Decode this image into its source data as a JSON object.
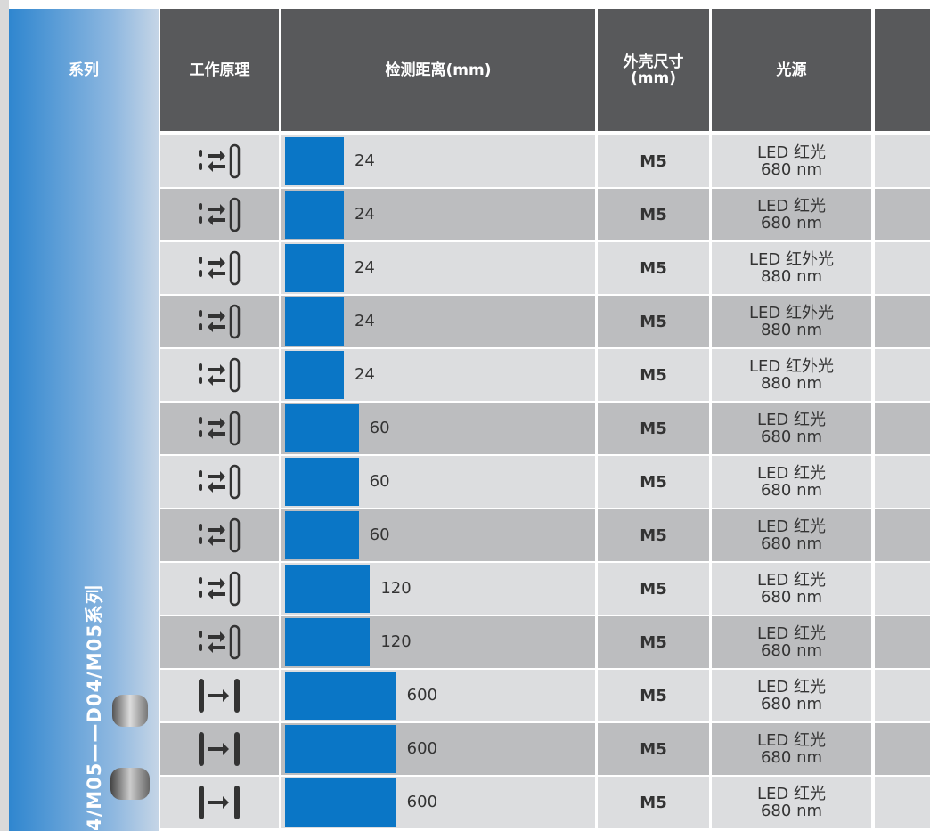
{
  "header": {
    "columns": [
      "系列",
      "工作原理",
      "检测距离(mm)",
      [
        "外壳尺寸",
        "(mm)"
      ],
      "光源"
    ]
  },
  "series_label": "4/M05——D04/M05系列",
  "table": {
    "rows": [
      {
        "distance": 24,
        "housing": "M5",
        "light": [
          "LED 红光",
          "680 nm"
        ]
      },
      {
        "distance": 24,
        "housing": "M5",
        "light": [
          "LED 红光",
          "680 nm"
        ]
      },
      {
        "distance": 24,
        "housing": "M5",
        "light": [
          "LED 红外光",
          "880 nm"
        ]
      },
      {
        "distance": 24,
        "housing": "M5",
        "light": [
          "LED 红外光",
          "880 nm"
        ]
      },
      {
        "distance": 24,
        "housing": "M5",
        "light": [
          "LED 红外光",
          "880 nm"
        ]
      },
      {
        "distance": 60,
        "housing": "M5",
        "light": [
          "LED 红光",
          "680 nm"
        ]
      },
      {
        "distance": 60,
        "housing": "M5",
        "light": [
          "LED 红光",
          "680 nm"
        ]
      },
      {
        "distance": 60,
        "housing": "M5",
        "light": [
          "LED 红光",
          "680 nm"
        ]
      },
      {
        "distance": 120,
        "housing": "M5",
        "light": [
          "LED 红光",
          "680 nm"
        ]
      },
      {
        "distance": 120,
        "housing": "M5",
        "light": [
          "LED 红光",
          "680 nm"
        ]
      },
      {
        "distance": 600,
        "housing": "M5",
        "light": [
          "LED 红光",
          "680 nm"
        ]
      },
      {
        "distance": 600,
        "housing": "M5",
        "light": [
          "LED 红光",
          "680 nm"
        ]
      },
      {
        "distance": 600,
        "housing": "M5",
        "light": [
          "LED 红光",
          "680 nm"
        ]
      }
    ]
  }
}
